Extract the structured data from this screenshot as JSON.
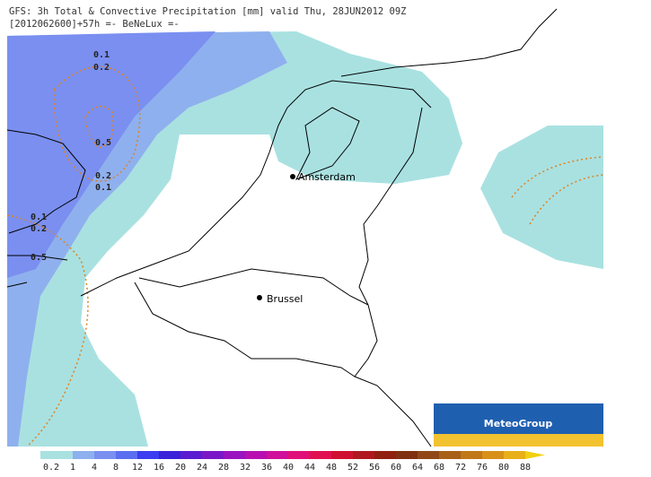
{
  "header": {
    "line1": "GFS: 3h Total & Convective Precipitation [mm] valid Thu, 28JUN2012 09Z",
    "line2": "[2012062600]+57h  =- BeNeLux =-"
  },
  "cities": [
    {
      "label": "Amsterdam"
    },
    {
      "label": "Brussel"
    }
  ],
  "contour_labels": [
    "0.1",
    "0.2",
    "0.5",
    "0.2",
    "0.1",
    "0.1",
    "0.2",
    "0.5"
  ],
  "logo": "MeteoGroup",
  "legend": {
    "labels": [
      "0.2",
      "1",
      "4",
      "8",
      "12",
      "16",
      "20",
      "24",
      "28",
      "32",
      "36",
      "40",
      "44",
      "48",
      "52",
      "56",
      "60",
      "64",
      "68",
      "72",
      "76",
      "80",
      "88"
    ]
  }
}
